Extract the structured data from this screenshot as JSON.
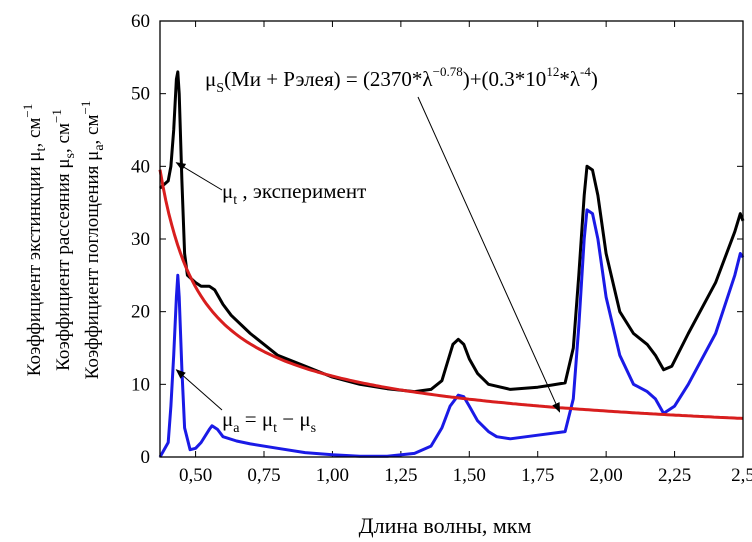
{
  "chart_data": {
    "type": "line",
    "xlabel": "Длина волны, мкм",
    "ylabel_lines": [
      [
        "Коэффициент экстинкции μ",
        "t",
        ", см",
        "−1"
      ],
      [
        "Коэффициент рассеяния μ",
        "s",
        ", см",
        "−1"
      ],
      [
        "Коэффициент поглощения μ",
        "a",
        ", см",
        "−1"
      ]
    ],
    "xlim": [
      0.37,
      2.5
    ],
    "ylim": [
      0,
      60
    ],
    "x_ticks": [
      0.5,
      0.75,
      1.0,
      1.25,
      1.5,
      1.75,
      2.0,
      2.25,
      2.5
    ],
    "x_tick_labels": [
      "0,50",
      "0,75",
      "1,00",
      "1,25",
      "1,50",
      "1,75",
      "2,00",
      "2,25",
      "2,5"
    ],
    "y_ticks": [
      0,
      10,
      20,
      30,
      40,
      50,
      60
    ],
    "y_tick_labels": [
      "0",
      "10",
      "20",
      "30",
      "40",
      "50",
      "60"
    ],
    "grid": false,
    "series": [
      {
        "color": "#000000",
        "points": [
          [
            0.37,
            37.0
          ],
          [
            0.4,
            38.0
          ],
          [
            0.41,
            40.0
          ],
          [
            0.42,
            45.0
          ],
          [
            0.43,
            52.0
          ],
          [
            0.435,
            53.0
          ],
          [
            0.44,
            50.0
          ],
          [
            0.45,
            38.0
          ],
          [
            0.46,
            28.0
          ],
          [
            0.47,
            25.0
          ],
          [
            0.5,
            24.0
          ],
          [
            0.52,
            23.5
          ],
          [
            0.55,
            23.5
          ],
          [
            0.57,
            23.0
          ],
          [
            0.6,
            21.0
          ],
          [
            0.63,
            19.5
          ],
          [
            0.7,
            17.0
          ],
          [
            0.8,
            14.0
          ],
          [
            0.9,
            12.5
          ],
          [
            1.0,
            11.0
          ],
          [
            1.1,
            10.0
          ],
          [
            1.2,
            9.4
          ],
          [
            1.3,
            9.0
          ],
          [
            1.36,
            9.3
          ],
          [
            1.4,
            10.5
          ],
          [
            1.42,
            13.0
          ],
          [
            1.44,
            15.5
          ],
          [
            1.46,
            16.2
          ],
          [
            1.48,
            15.5
          ],
          [
            1.5,
            13.5
          ],
          [
            1.53,
            11.5
          ],
          [
            1.57,
            10.0
          ],
          [
            1.65,
            9.3
          ],
          [
            1.75,
            9.6
          ],
          [
            1.8,
            9.9
          ],
          [
            1.85,
            10.2
          ],
          [
            1.88,
            15.0
          ],
          [
            1.9,
            25.0
          ],
          [
            1.92,
            36.0
          ],
          [
            1.93,
            40.0
          ],
          [
            1.95,
            39.5
          ],
          [
            1.97,
            36.0
          ],
          [
            2.0,
            28.0
          ],
          [
            2.05,
            20.0
          ],
          [
            2.1,
            17.0
          ],
          [
            2.15,
            15.5
          ],
          [
            2.18,
            14.0
          ],
          [
            2.21,
            12.0
          ],
          [
            2.24,
            12.5
          ],
          [
            2.3,
            17.0
          ],
          [
            2.4,
            24.0
          ],
          [
            2.47,
            31.0
          ],
          [
            2.49,
            33.5
          ],
          [
            2.5,
            32.5
          ]
        ]
      },
      {
        "color": "#1a1ae6",
        "points": [
          [
            0.37,
            0.0
          ],
          [
            0.4,
            2.0
          ],
          [
            0.41,
            7.0
          ],
          [
            0.42,
            14.0
          ],
          [
            0.43,
            22.0
          ],
          [
            0.435,
            25.0
          ],
          [
            0.44,
            22.0
          ],
          [
            0.45,
            12.0
          ],
          [
            0.46,
            4.0
          ],
          [
            0.48,
            1.0
          ],
          [
            0.5,
            1.2
          ],
          [
            0.52,
            2.0
          ],
          [
            0.55,
            3.8
          ],
          [
            0.56,
            4.3
          ],
          [
            0.58,
            3.8
          ],
          [
            0.6,
            2.8
          ],
          [
            0.65,
            2.2
          ],
          [
            0.7,
            1.8
          ],
          [
            0.8,
            1.2
          ],
          [
            0.9,
            0.6
          ],
          [
            1.0,
            0.3
          ],
          [
            1.1,
            0.1
          ],
          [
            1.2,
            0.1
          ],
          [
            1.3,
            0.5
          ],
          [
            1.36,
            1.5
          ],
          [
            1.4,
            4.0
          ],
          [
            1.43,
            7.0
          ],
          [
            1.46,
            8.5
          ],
          [
            1.48,
            8.3
          ],
          [
            1.5,
            7.0
          ],
          [
            1.53,
            5.0
          ],
          [
            1.57,
            3.5
          ],
          [
            1.6,
            2.8
          ],
          [
            1.65,
            2.5
          ],
          [
            1.75,
            3.0
          ],
          [
            1.85,
            3.5
          ],
          [
            1.88,
            8.0
          ],
          [
            1.9,
            18.0
          ],
          [
            1.92,
            30.0
          ],
          [
            1.93,
            34.0
          ],
          [
            1.95,
            33.5
          ],
          [
            1.97,
            30.0
          ],
          [
            2.0,
            22.0
          ],
          [
            2.05,
            14.0
          ],
          [
            2.1,
            10.0
          ],
          [
            2.15,
            9.0
          ],
          [
            2.18,
            8.0
          ],
          [
            2.21,
            6.0
          ],
          [
            2.25,
            7.0
          ],
          [
            2.3,
            10.0
          ],
          [
            2.4,
            17.0
          ],
          [
            2.47,
            25.0
          ],
          [
            2.49,
            28.0
          ],
          [
            2.5,
            27.5
          ]
        ]
      },
      {
        "color": "#d81e1e",
        "mie_a": 2370,
        "mie_b": -0.78,
        "rayleigh_c": 300000000000.0,
        "rayleigh_d": -4,
        "x_start": 0.37,
        "x_end": 2.5
      }
    ],
    "annotations": {
      "formula": {
        "mu": "μ",
        "sub": "S",
        "body1": "(Ми + Рэлея) = (2370*λ",
        "sup1": "−0.78",
        "body2": ")+(0.3*10",
        "sup2": "12",
        "body3": "*λ",
        "sup3": "-4",
        "body4": ")",
        "arrow_to": [
          1.83,
          6.2
        ]
      },
      "mu_t_label": {
        "mu": "μ",
        "sub": "t",
        "rest": " , эксперимент",
        "arrow_to": [
          0.43,
          40.5
        ]
      },
      "mu_a_label": {
        "mu": "μ",
        "sub1": "a",
        "eq": " = μ",
        "sub2": "t",
        "minus": " − μ",
        "sub3": "s",
        "arrow_to": [
          0.43,
          12.0
        ]
      }
    }
  }
}
